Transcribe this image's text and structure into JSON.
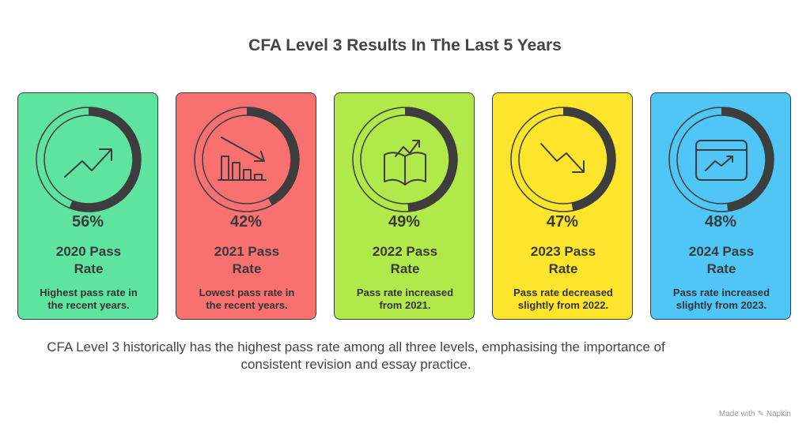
{
  "title": "CFA Level 3 Results In The Last 5 Years",
  "cards": [
    {
      "year": "2020",
      "percent": "56%",
      "value": 56,
      "label_line1": "2020 Pass",
      "label_line2": "Rate",
      "desc_line1": "Highest pass rate in",
      "desc_line2": "the recent years.",
      "color": "#5fe3a0",
      "icon": "trend-up-icon"
    },
    {
      "year": "2021",
      "percent": "42%",
      "value": 42,
      "label_line1": "2021 Pass",
      "label_line2": "Rate",
      "desc_line1": "Lowest pass rate in",
      "desc_line2": "the recent years.",
      "color": "#f97070",
      "icon": "bar-chart-down-icon"
    },
    {
      "year": "2022",
      "percent": "49%",
      "value": 49,
      "label_line1": "2022 Pass",
      "label_line2": "Rate",
      "desc_line1": "Pass rate increased",
      "desc_line2": "from 2021.",
      "color": "#b2e94a",
      "icon": "book-trend-icon"
    },
    {
      "year": "2023",
      "percent": "47%",
      "value": 47,
      "label_line1": "2023 Pass",
      "label_line2": "Rate",
      "desc_line1": "Pass rate decreased",
      "desc_line2": "slightly from 2022.",
      "color": "#fde52c",
      "icon": "trend-down-icon"
    },
    {
      "year": "2024",
      "percent": "48%",
      "value": 48,
      "label_line1": "2024 Pass",
      "label_line2": "Rate",
      "desc_line1": "Pass rate increased",
      "desc_line2": "slightly from 2023.",
      "color": "#4fc6f5",
      "icon": "calendar-trend-icon"
    }
  ],
  "footer": {
    "line1": "CFA Level 3 historically has the highest pass rate among all three levels, emphasising the importance of",
    "line2": "consistent revision and essay practice."
  },
  "brand": {
    "made_with": "Made with",
    "name": "Napkin"
  }
}
